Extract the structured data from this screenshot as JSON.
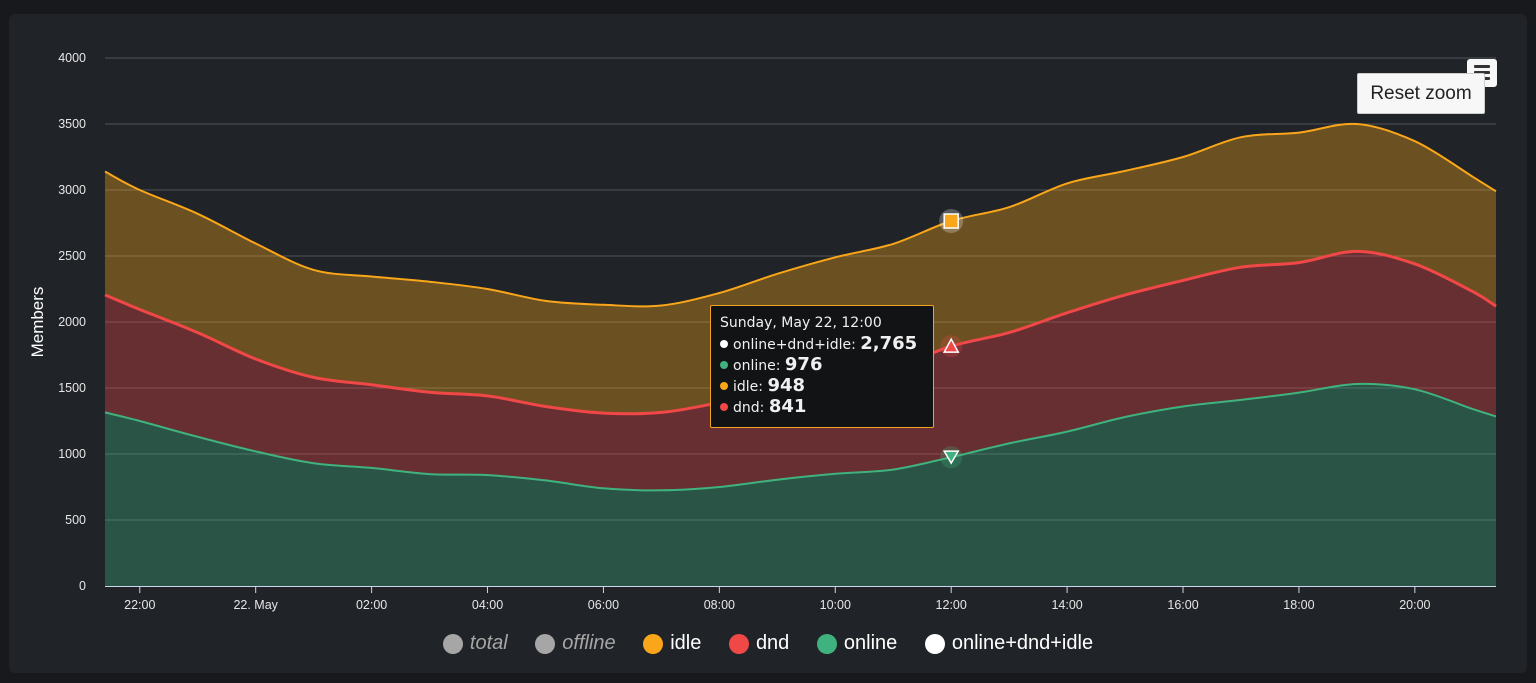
{
  "chart_data": {
    "type": "area",
    "stacking": "normal",
    "ylabel": "Members",
    "ylim": [
      0,
      4000
    ],
    "yticks": [
      0,
      500,
      1000,
      1500,
      2000,
      2500,
      3000,
      3500,
      4000
    ],
    "xticks": [
      {
        "h": 22,
        "label": "22:00"
      },
      {
        "h": 24,
        "label": "22. May"
      },
      {
        "h": 26,
        "label": "02:00"
      },
      {
        "h": 28,
        "label": "04:00"
      },
      {
        "h": 30,
        "label": "06:00"
      },
      {
        "h": 32,
        "label": "08:00"
      },
      {
        "h": 34,
        "label": "10:00"
      },
      {
        "h": 36,
        "label": "12:00"
      },
      {
        "h": 38,
        "label": "14:00"
      },
      {
        "h": 40,
        "label": "16:00"
      },
      {
        "h": 42,
        "label": "18:00"
      },
      {
        "h": 44,
        "label": "20:00"
      }
    ],
    "xrange_hours": [
      21.4,
      45.4
    ],
    "x_hours": [
      21.4,
      22,
      23,
      24,
      25,
      26,
      27,
      28,
      29,
      30,
      31,
      32,
      33,
      34,
      35,
      36,
      37,
      38,
      39,
      40,
      41,
      42,
      43,
      44,
      45,
      45.4
    ],
    "series": [
      {
        "name": "online",
        "color": "#3fb27f",
        "values": [
          1315,
          1250,
          1130,
          1020,
          930,
          895,
          848,
          840,
          800,
          740,
          725,
          750,
          805,
          850,
          882,
          976,
          1080,
          1170,
          1280,
          1360,
          1410,
          1465,
          1530,
          1490,
          1340,
          1285
        ]
      },
      {
        "name": "dnd",
        "color": "#f04747",
        "values": [
          890,
          845,
          790,
          700,
          650,
          630,
          620,
          600,
          560,
          570,
          590,
          640,
          680,
          730,
          770,
          841,
          840,
          900,
          925,
          955,
          1005,
          985,
          1005,
          950,
          890,
          835
        ]
      },
      {
        "name": "idle",
        "color": "#faa61a",
        "values": [
          935,
          905,
          900,
          875,
          815,
          820,
          837,
          810,
          800,
          820,
          810,
          830,
          880,
          910,
          940,
          948,
          950,
          980,
          940,
          935,
          985,
          985,
          965,
          930,
          870,
          870
        ]
      }
    ],
    "tooltip": {
      "header": "Sunday, May 22, 12:00",
      "rows": [
        {
          "name": "online+dnd+idle",
          "value": "2,765",
          "color": "#ffffff"
        },
        {
          "name": "online",
          "value": "976",
          "color": "#3fb27f"
        },
        {
          "name": "idle",
          "value": "948",
          "color": "#faa61a"
        },
        {
          "name": "dnd",
          "value": "841",
          "color": "#f04747"
        }
      ]
    },
    "hover_hour": 36,
    "legend": [
      {
        "name": "total",
        "color": "#a6a6a6",
        "visible": false
      },
      {
        "name": "offline",
        "color": "#a6a6a6",
        "visible": false
      },
      {
        "name": "idle",
        "color": "#faa61a",
        "visible": true
      },
      {
        "name": "dnd",
        "color": "#f04747",
        "visible": true
      },
      {
        "name": "online",
        "color": "#3fb27f",
        "visible": true
      },
      {
        "name": "online+dnd+idle",
        "color": "#ffffff",
        "visible": true
      }
    ]
  },
  "controls": {
    "reset_zoom": "Reset zoom"
  }
}
